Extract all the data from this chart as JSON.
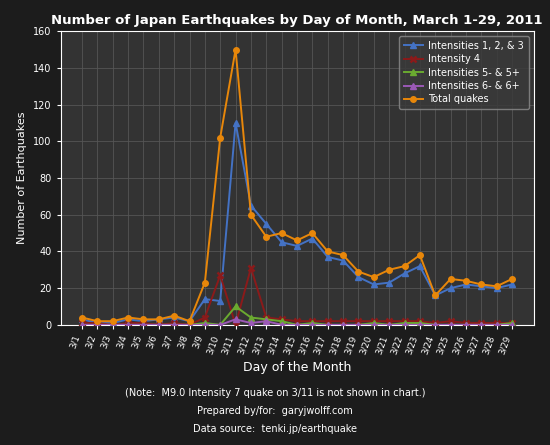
{
  "title": "Number of Japan Earthquakes by Day of Month, March 1-29, 2011",
  "xlabel": "Day of the Month",
  "ylabel": "Number of Earthquakes",
  "footnote1": "(Note:  M9.0 Intensity 7 quake on 3/11 is not shown in chart.)",
  "footnote2": "Prepared by/for:  garyjwolff.com",
  "footnote3": "Data source:  tenki.jp/earthquake",
  "days": [
    "3/1",
    "3/2",
    "3/3",
    "3/4",
    "3/5",
    "3/6",
    "3/7",
    "3/8",
    "3/9",
    "3/10",
    "3/11",
    "3/12",
    "3/13",
    "3/14",
    "3/15",
    "3/16",
    "3/17",
    "3/18",
    "3/19",
    "3/20",
    "3/21",
    "3/22",
    "3/23",
    "3/24",
    "3/25",
    "3/26",
    "3/27",
    "3/28",
    "3/29"
  ],
  "int123": [
    3,
    1,
    1,
    3,
    2,
    3,
    4,
    2,
    14,
    13,
    110,
    65,
    55,
    45,
    43,
    47,
    37,
    35,
    26,
    22,
    23,
    28,
    32,
    16,
    20,
    22,
    21,
    20,
    22
  ],
  "int4": [
    1,
    1,
    0,
    1,
    1,
    0,
    1,
    0,
    4,
    27,
    0,
    31,
    4,
    3,
    2,
    2,
    2,
    2,
    2,
    2,
    2,
    2,
    2,
    1,
    2,
    1,
    1,
    1,
    1
  ],
  "int56": [
    0,
    0,
    0,
    0,
    0,
    0,
    0,
    0,
    1,
    0,
    10,
    4,
    3,
    2,
    0,
    1,
    0,
    0,
    0,
    1,
    0,
    1,
    1,
    0,
    0,
    0,
    0,
    0,
    1
  ],
  "int66": [
    0,
    0,
    0,
    0,
    0,
    0,
    0,
    0,
    0,
    0,
    3,
    1,
    2,
    0,
    0,
    0,
    0,
    0,
    0,
    0,
    0,
    0,
    0,
    0,
    0,
    0,
    0,
    0,
    0
  ],
  "total": [
    4,
    2,
    2,
    4,
    3,
    3,
    5,
    2,
    23,
    102,
    150,
    60,
    48,
    50,
    46,
    50,
    40,
    38,
    29,
    26,
    30,
    32,
    38,
    16,
    25,
    24,
    22,
    21,
    25
  ],
  "color_int123": "#4472c4",
  "color_int4": "#8b1a1a",
  "color_int56": "#6aaa30",
  "color_int66": "#9b59b6",
  "color_total": "#e8870a",
  "bg_color": "#1c1c1c",
  "plot_bg_color": "#333333",
  "grid_color": "#555555",
  "text_color": "#ffffff",
  "ylim": [
    0,
    160
  ],
  "yticks": [
    0,
    20,
    40,
    60,
    80,
    100,
    120,
    140,
    160
  ]
}
